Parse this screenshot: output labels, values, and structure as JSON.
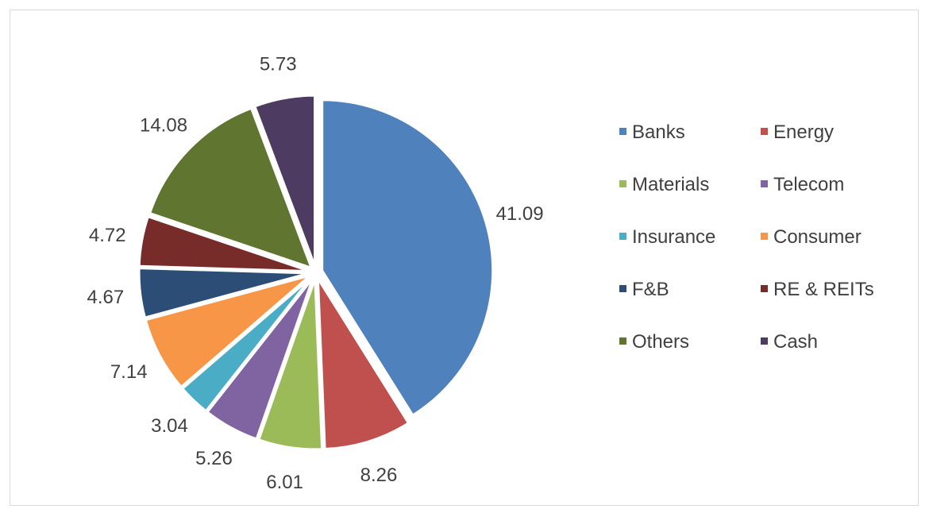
{
  "chart_data": {
    "type": "pie",
    "title": "",
    "categories": [
      "Banks",
      "Energy",
      "Materials",
      "Telecom",
      "Insurance",
      "Consumer",
      "F&B",
      "RE & REITs",
      "Others",
      "Cash"
    ],
    "values": [
      41.09,
      8.26,
      6.01,
      5.26,
      3.04,
      7.14,
      4.67,
      4.72,
      14.08,
      5.73
    ],
    "labels": [
      "41.09",
      "8.26",
      "6.01",
      "5.26",
      "3.04",
      "7.14",
      "4.67",
      "4.72",
      "14.08",
      "5.73"
    ],
    "colors": [
      "#4f81bd",
      "#c0504d",
      "#9bbb59",
      "#8064a2",
      "#4bacc6",
      "#f79646",
      "#2c4d75",
      "#772c2a",
      "#5f7530",
      "#4d3b62"
    ],
    "exploded": true,
    "data_labels": "outside",
    "legend": {
      "position": "right",
      "items": [
        "Banks",
        "Energy",
        "Materials",
        "Telecom",
        "Insurance",
        "Consumer",
        "F&B",
        "RE & REITs",
        "Others",
        "Cash"
      ]
    }
  }
}
